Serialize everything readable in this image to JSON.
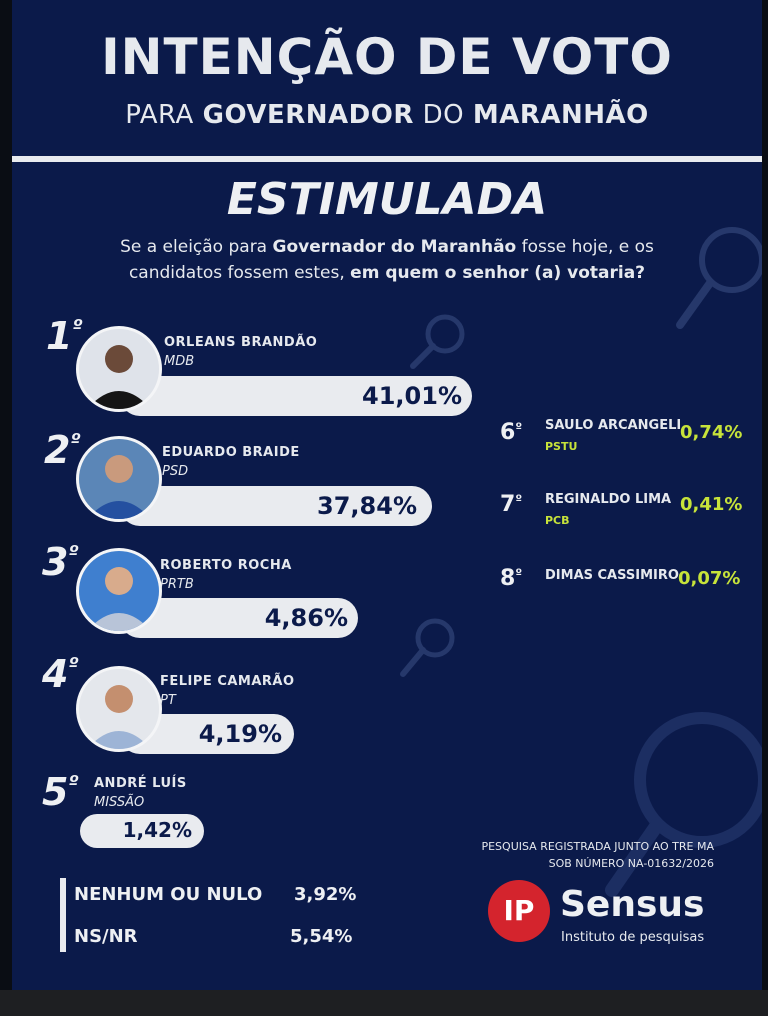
{
  "header": {
    "title": "INTENÇÃO DE VOTO",
    "subtitle_pre": "PARA ",
    "subtitle_bold1": "GOVERNADOR",
    "subtitle_mid": " DO ",
    "subtitle_bold2": "MARANHÃO",
    "type_label": "ESTIMULADA"
  },
  "question": {
    "part1": "Se a eleição para ",
    "bold1": "Governador do Maranhão",
    "part2": " fosse hoje, e os candidatos fossem estes, ",
    "bold2": "em quem o senhor (a) votaria?"
  },
  "chart_data": {
    "type": "bar",
    "categories": [
      "ORLEANS BRANDÃO",
      "EDUARDO BRAIDE",
      "ROBERTO ROCHA",
      "FELIPE CAMARÃO",
      "ANDRÉ LUÍS",
      "SAULO ARCANGELI",
      "REGINALDO LIMA",
      "DIMAS CASSIMIRO",
      "NENHUM OU NULO",
      "NS/NR"
    ],
    "values": [
      41.01,
      37.84,
      4.86,
      4.19,
      1.42,
      0.74,
      0.41,
      0.07,
      3.92,
      5.54
    ],
    "unit": "%"
  },
  "candidates": [
    {
      "rank": "1",
      "ord": "º",
      "name": "ORLEANS BRANDÃO",
      "party": "MDB",
      "pct": "41,01%",
      "value": 41.01
    },
    {
      "rank": "2",
      "ord": "º",
      "name": "EDUARDO BRAIDE",
      "party": "PSD",
      "pct": "37,84%",
      "value": 37.84
    },
    {
      "rank": "3",
      "ord": "º",
      "name": "ROBERTO ROCHA",
      "party": "PRTB",
      "pct": "4,86%",
      "value": 4.86
    },
    {
      "rank": "4",
      "ord": "º",
      "name": "FELIPE CAMARÃO",
      "party": "PT",
      "pct": "4,19%",
      "value": 4.19
    },
    {
      "rank": "5",
      "ord": "º",
      "name": "ANDRÉ LUÍS",
      "party": "MISSÃO",
      "pct": "1,42%",
      "value": 1.42
    }
  ],
  "others": [
    {
      "rank": "6",
      "ord": "º",
      "name": "SAULO ARCANGELI",
      "party": "PSTU",
      "pct": "0,74%"
    },
    {
      "rank": "7",
      "ord": "º",
      "name": "REGINALDO LIMA",
      "party": "PCB",
      "pct": "0,41%"
    },
    {
      "rank": "8",
      "ord": "º",
      "name": "DIMAS CASSIMIRO",
      "party": "",
      "pct": "0,07%"
    }
  ],
  "footer": {
    "null_label": "NENHUM OU NULO",
    "null_pct": "3,92%",
    "nsnr_label": "NS/NR",
    "nsnr_pct": "5,54%",
    "registration_line1": "PESQUISA REGISTRADA JUNTO AO TRE MA",
    "registration_line2": "SOB NÚMERO NA-01632/2026",
    "logo_mark": "IP",
    "logo_name": "Sensus",
    "logo_tagline": "Instituto de pesquisas"
  },
  "colors": {
    "background": "#0b1a4a",
    "bar": "#e9ebef",
    "accent_green": "#c7e33a",
    "logo_red": "#d4242d"
  }
}
